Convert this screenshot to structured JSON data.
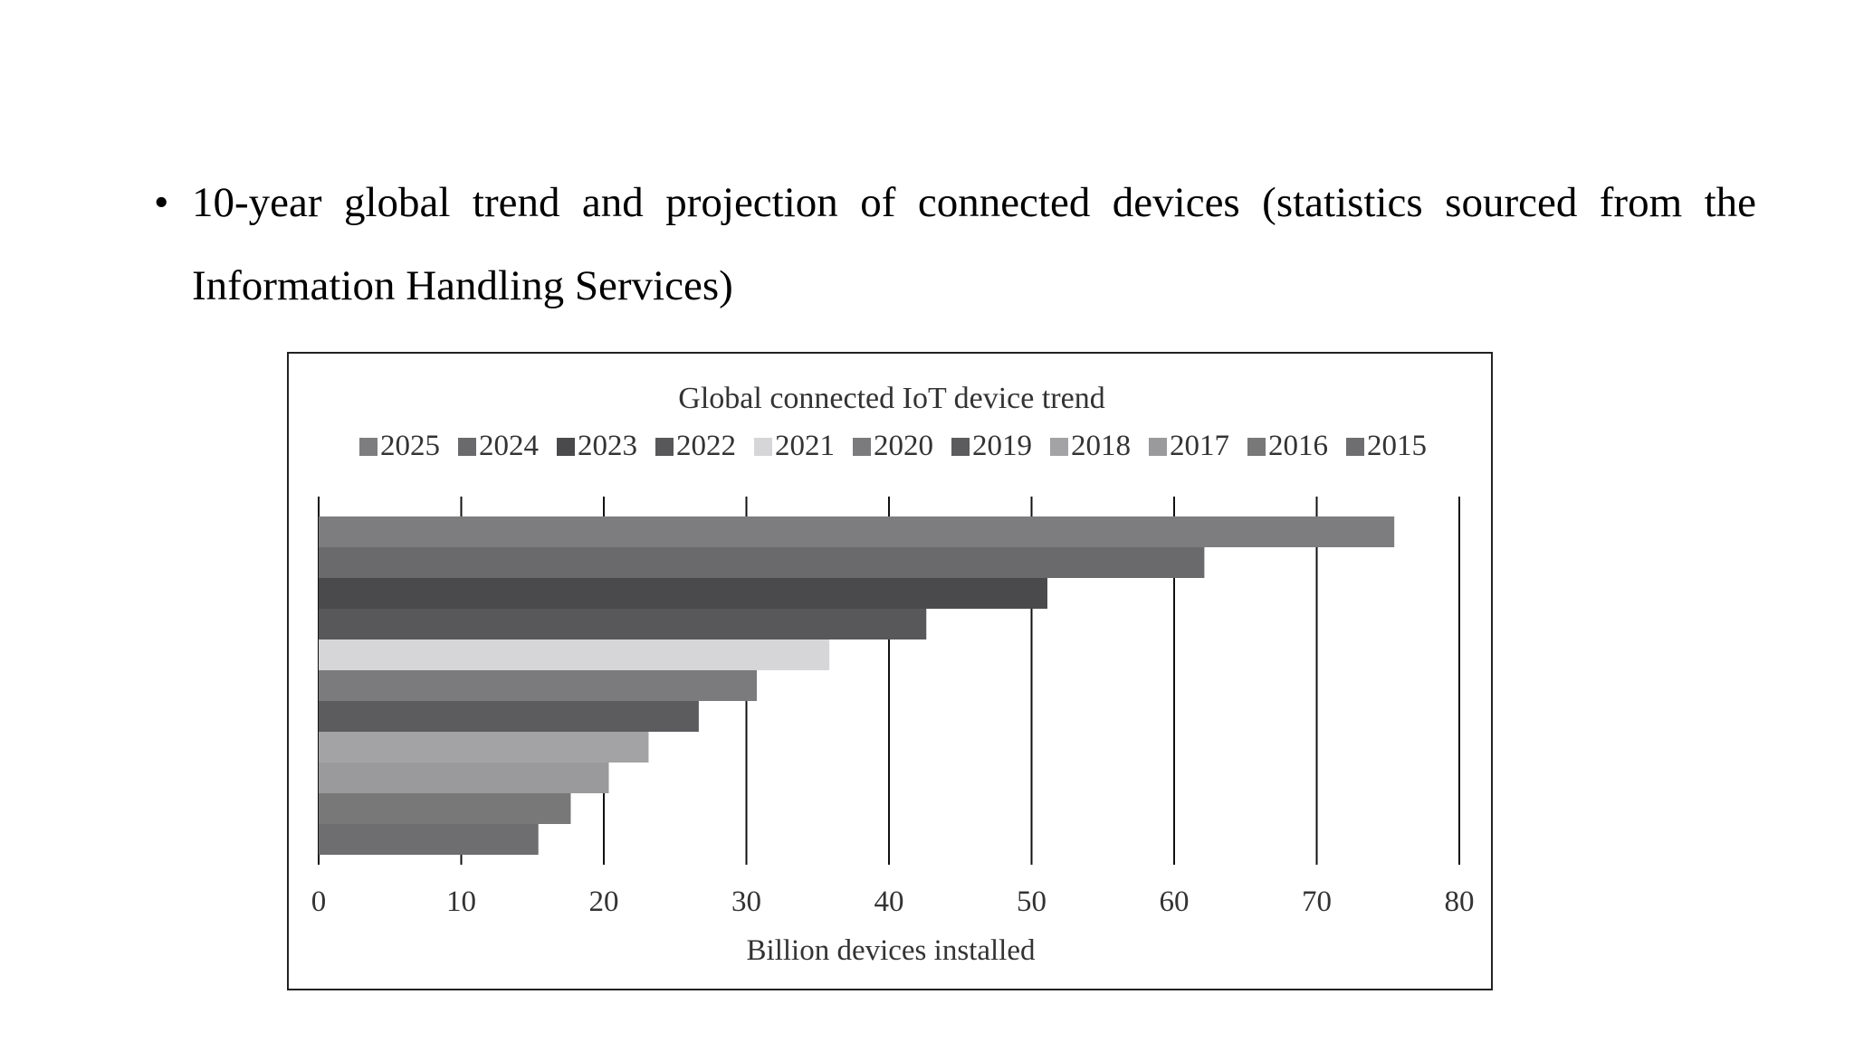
{
  "bullet": {
    "marker": "•",
    "text": "10-year global trend and projection of connected devices (statistics sourced from the Information Handling Services)"
  },
  "chart_data": {
    "type": "bar",
    "orientation": "horizontal",
    "title": "Global connected IoT device trend",
    "xlabel": "Billion devices installed",
    "ylabel": "",
    "xlim": [
      0,
      80
    ],
    "xticks": [
      "0",
      "10",
      "20",
      "30",
      "40",
      "50",
      "60",
      "70",
      "80"
    ],
    "grid": true,
    "legend_position": "top",
    "categories": [
      "2025",
      "2024",
      "2023",
      "2022",
      "2021",
      "2020",
      "2019",
      "2018",
      "2017",
      "2016",
      "2015"
    ],
    "values": [
      75.44,
      62.12,
      51.11,
      42.62,
      35.82,
      30.73,
      26.66,
      23.14,
      20.35,
      17.68,
      15.41
    ],
    "colors": [
      "#7d7d7f",
      "#6a6a6c",
      "#4a4a4c",
      "#58585a",
      "#d6d6d8",
      "#7b7b7d",
      "#5c5c5e",
      "#a3a3a5",
      "#9a9a9c",
      "#787879",
      "#6e6e70"
    ]
  }
}
